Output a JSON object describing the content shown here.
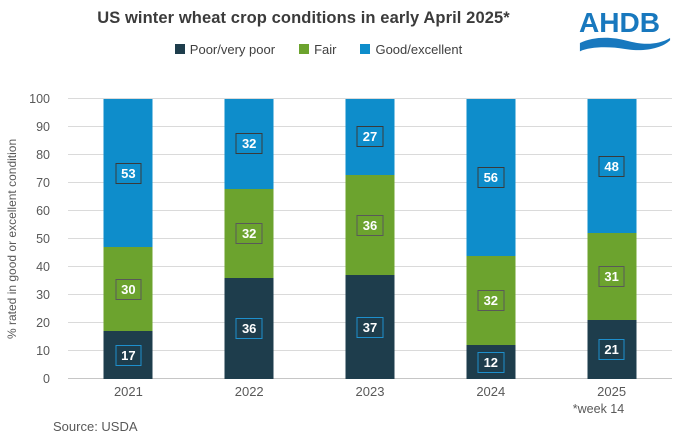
{
  "title": "US winter wheat crop conditions in early April 2025*",
  "logo": {
    "text": "AHDB",
    "color": "#1878be"
  },
  "chart_data": {
    "type": "bar",
    "stacked": true,
    "title": "US winter wheat crop conditions in early April 2025*",
    "categories": [
      "2021",
      "2022",
      "2023",
      "2024",
      "2025"
    ],
    "series": [
      {
        "key": "poor-very-poor",
        "name": "Poor/very poor",
        "color": "#1e3d4c",
        "label_border": "#1e8fcc",
        "values": [
          17,
          36,
          37,
          12,
          21
        ]
      },
      {
        "key": "fair",
        "name": "Fair",
        "color": "#6ca32e",
        "label_border": "#595959",
        "values": [
          30,
          32,
          36,
          32,
          31
        ]
      },
      {
        "key": "good-excellent",
        "name": "Good/excellent",
        "color": "#0e8dcb",
        "label_border": "#3a3a3a",
        "values": [
          53,
          32,
          27,
          56,
          48
        ]
      }
    ],
    "xlabel": "",
    "ylabel": "% rated in good or excellent condition",
    "ylim": [
      0,
      100
    ],
    "yticks": [
      0,
      10,
      20,
      30,
      40,
      50,
      60,
      70,
      80,
      90,
      100
    ],
    "grid": true,
    "legend_position": "top",
    "footnote": "*week 14",
    "source": "Source: USDA"
  }
}
